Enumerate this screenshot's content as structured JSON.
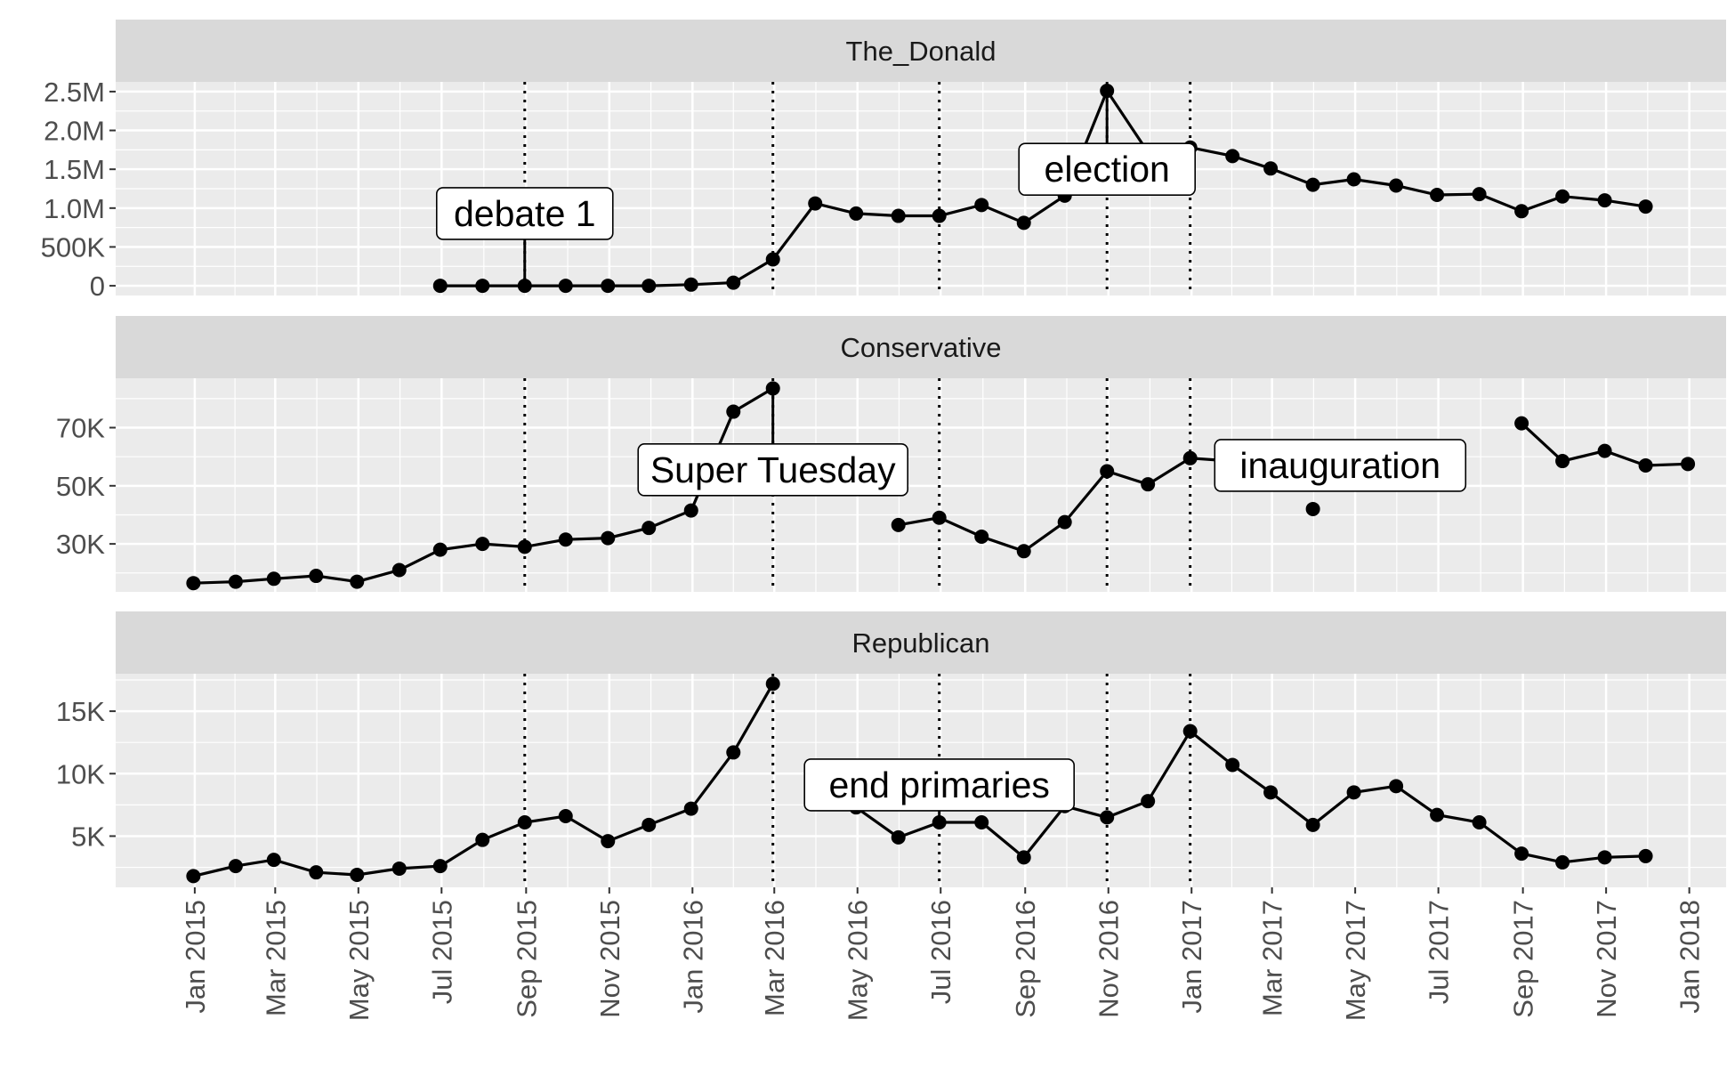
{
  "chart_data": {
    "type": "line",
    "x": [
      "2014-12-31",
      "2015-01-31",
      "2015-02-28",
      "2015-03-31",
      "2015-04-30",
      "2015-05-31",
      "2015-06-30",
      "2015-07-31",
      "2015-08-31",
      "2015-09-30",
      "2015-10-31",
      "2015-11-30",
      "2015-12-31",
      "2016-01-31",
      "2016-02-29",
      "2016-03-31",
      "2016-04-30",
      "2016-05-31",
      "2016-06-30",
      "2016-07-31",
      "2016-08-31",
      "2016-09-30",
      "2016-10-31",
      "2016-11-30",
      "2016-12-31",
      "2017-01-31",
      "2017-02-28",
      "2017-03-31",
      "2017-04-30",
      "2017-05-31",
      "2017-06-30",
      "2017-07-31",
      "2017-08-31",
      "2017-09-30",
      "2017-10-31",
      "2017-11-30",
      "2017-12-31"
    ],
    "x_ticks": [
      "Jan 2015",
      "Mar 2015",
      "May 2015",
      "Jul 2015",
      "Sep 2015",
      "Nov 2015",
      "Jan 2016",
      "Mar 2016",
      "May 2016",
      "Jul 2016",
      "Sep 2016",
      "Nov 2016",
      "Jan 2017",
      "Mar 2017",
      "May 2017",
      "Jul 2017",
      "Sep 2017",
      "Nov 2017",
      "Jan 2018"
    ],
    "x_tick_dates": [
      "2015-01-01",
      "2015-03-01",
      "2015-05-01",
      "2015-07-01",
      "2015-09-01",
      "2015-11-01",
      "2016-01-01",
      "2016-03-01",
      "2016-05-01",
      "2016-07-01",
      "2016-09-01",
      "2016-11-01",
      "2017-01-01",
      "2017-03-01",
      "2017-05-01",
      "2017-07-01",
      "2017-09-01",
      "2017-11-01",
      "2018-01-01"
    ],
    "x_range": [
      "2014-11-04",
      "2018-01-28"
    ],
    "event_lines": [
      "2015-08-31",
      "2016-02-29",
      "2016-06-30",
      "2016-10-31",
      "2016-12-31"
    ],
    "grid": true,
    "panels": [
      {
        "name": "The_Donald",
        "y_ticks": [
          {
            "value": 0,
            "label": "0"
          },
          {
            "value": 500000,
            "label": "500K"
          },
          {
            "value": 1000000,
            "label": "1.0M"
          },
          {
            "value": 1500000,
            "label": "1.5M"
          },
          {
            "value": 2000000,
            "label": "2.0M"
          },
          {
            "value": 2500000,
            "label": "2.5M"
          }
        ],
        "ylim": [
          -125000,
          2625000
        ],
        "values": [
          null,
          null,
          null,
          null,
          null,
          null,
          0,
          0,
          0,
          0,
          0,
          0,
          15000,
          40000,
          340000,
          1060000,
          930000,
          900000,
          900000,
          1040000,
          810000,
          1160000,
          2510000,
          1720000,
          1780000,
          1670000,
          1510000,
          1300000,
          1370000,
          1290000,
          1170000,
          1180000,
          960000,
          1150000,
          1100000,
          1020000,
          null
        ],
        "annotation": {
          "text": "debate 1",
          "x": "2015-08-31",
          "y": 930000,
          "point_y": 0
        }
      },
      {
        "name": "Conservative",
        "y_ticks": [
          {
            "value": 30000,
            "label": "30K"
          },
          {
            "value": 50000,
            "label": "50K"
          },
          {
            "value": 70000,
            "label": "70K"
          }
        ],
        "ylim": [
          13500,
          87000
        ],
        "values": [
          16500,
          17000,
          18000,
          19000,
          17000,
          21000,
          28000,
          30000,
          29000,
          31500,
          32000,
          35500,
          41500,
          75500,
          83500,
          null,
          null,
          36500,
          39000,
          32500,
          27500,
          37500,
          55000,
          50500,
          59500,
          58500,
          null,
          42000,
          null,
          52000,
          null,
          null,
          71500,
          58500,
          62000,
          57000,
          57500
        ],
        "annotation": {
          "text": "Super Tuesday",
          "x": "2016-02-29",
          "y": 55500,
          "point_y": 83500
        }
      },
      {
        "name": "Republican",
        "y_ticks": [
          {
            "value": 5000,
            "label": "5K"
          },
          {
            "value": 10000,
            "label": "10K"
          },
          {
            "value": 15000,
            "label": "15K"
          }
        ],
        "ylim": [
          900,
          18000
        ],
        "values": [
          1800,
          2600,
          3100,
          2100,
          1900,
          2400,
          2600,
          4700,
          6100,
          6600,
          4600,
          5900,
          7200,
          11700,
          17200,
          null,
          7300,
          4900,
          6100,
          6100,
          3300,
          7400,
          6500,
          7800,
          13400,
          10700,
          8500,
          5900,
          8500,
          9000,
          6700,
          6100,
          3600,
          2900,
          3300,
          3400,
          null
        ],
        "annotation": {
          "text": "end primaries",
          "x": "2016-06-30",
          "y": 9100,
          "point_y": 6100
        }
      }
    ],
    "floating_annotations": [
      {
        "text": "election",
        "x": "2016-10-31",
        "y": 1500000,
        "point_y": 2510000,
        "panel": 0
      },
      {
        "text": "inauguration",
        "x": "2017-04-20",
        "y": 57000,
        "point_y": 59500,
        "panel": 1
      }
    ]
  }
}
